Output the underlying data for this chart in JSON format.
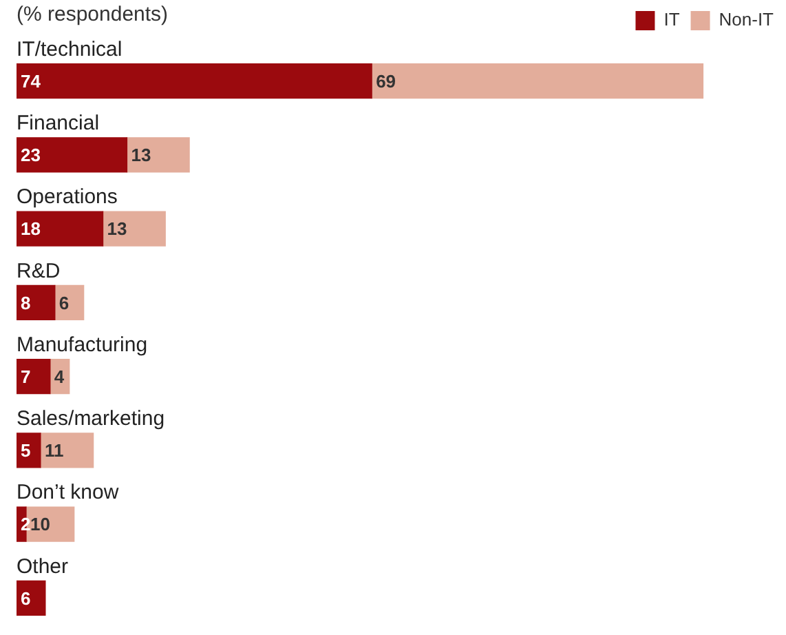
{
  "chart_data": {
    "type": "bar",
    "orientation": "horizontal",
    "stacked": true,
    "subtitle": "(% respondents)",
    "categories": [
      "IT/technical",
      "Financial",
      "Operations",
      "R&D",
      "Manufacturing",
      "Sales/marketing",
      "Don’t know",
      "Other"
    ],
    "series": [
      {
        "name": "IT",
        "color": "#9b0a0e",
        "values": [
          74,
          23,
          18,
          8,
          7,
          5,
          2,
          6
        ]
      },
      {
        "name": "Non-IT",
        "color": "#e3ad9b",
        "values": [
          69,
          13,
          13,
          6,
          4,
          11,
          10,
          null
        ]
      }
    ],
    "data_labels": true,
    "legend": "top right",
    "tick_labels": false
  }
}
